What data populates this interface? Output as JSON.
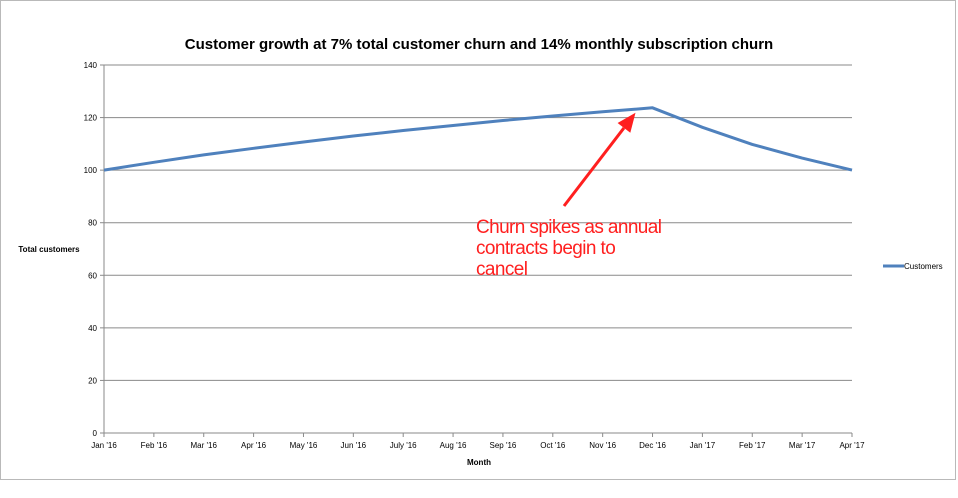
{
  "chart_data": {
    "type": "line",
    "title": "Customer growth at 7% total customer churn and 14% monthly subscription churn",
    "xlabel": "Month",
    "ylabel": "Total customers",
    "ylim": [
      0,
      140
    ],
    "yticks": [
      "0",
      "20",
      "40",
      "60",
      "80",
      "100",
      "120",
      "140"
    ],
    "categories": [
      "Jan '16",
      "Feb '16",
      "Mar '16",
      "Apr '16",
      "May '16",
      "Jun '16",
      "July '16",
      "Aug '16",
      "Sep '16",
      "Oct '16",
      "Nov '16",
      "Dec '16",
      "Jan '17",
      "Feb '17",
      "Mar '17",
      "Apr '17"
    ],
    "series": [
      {
        "name": "Customers",
        "color": "#4f81bd",
        "values": [
          100.0,
          103.0,
          105.8,
          108.3,
          110.7,
          113.0,
          115.1,
          117.0,
          118.9,
          120.6,
          122.2,
          123.7,
          116.3,
          109.8,
          104.6,
          100.0
        ]
      }
    ],
    "grid": true,
    "legend": "right",
    "annotation": {
      "lines": [
        "Churn spikes as annual",
        "contracts begin to",
        "cancel"
      ],
      "color": "#ff1f1f",
      "points_to": "Dec '16"
    }
  }
}
